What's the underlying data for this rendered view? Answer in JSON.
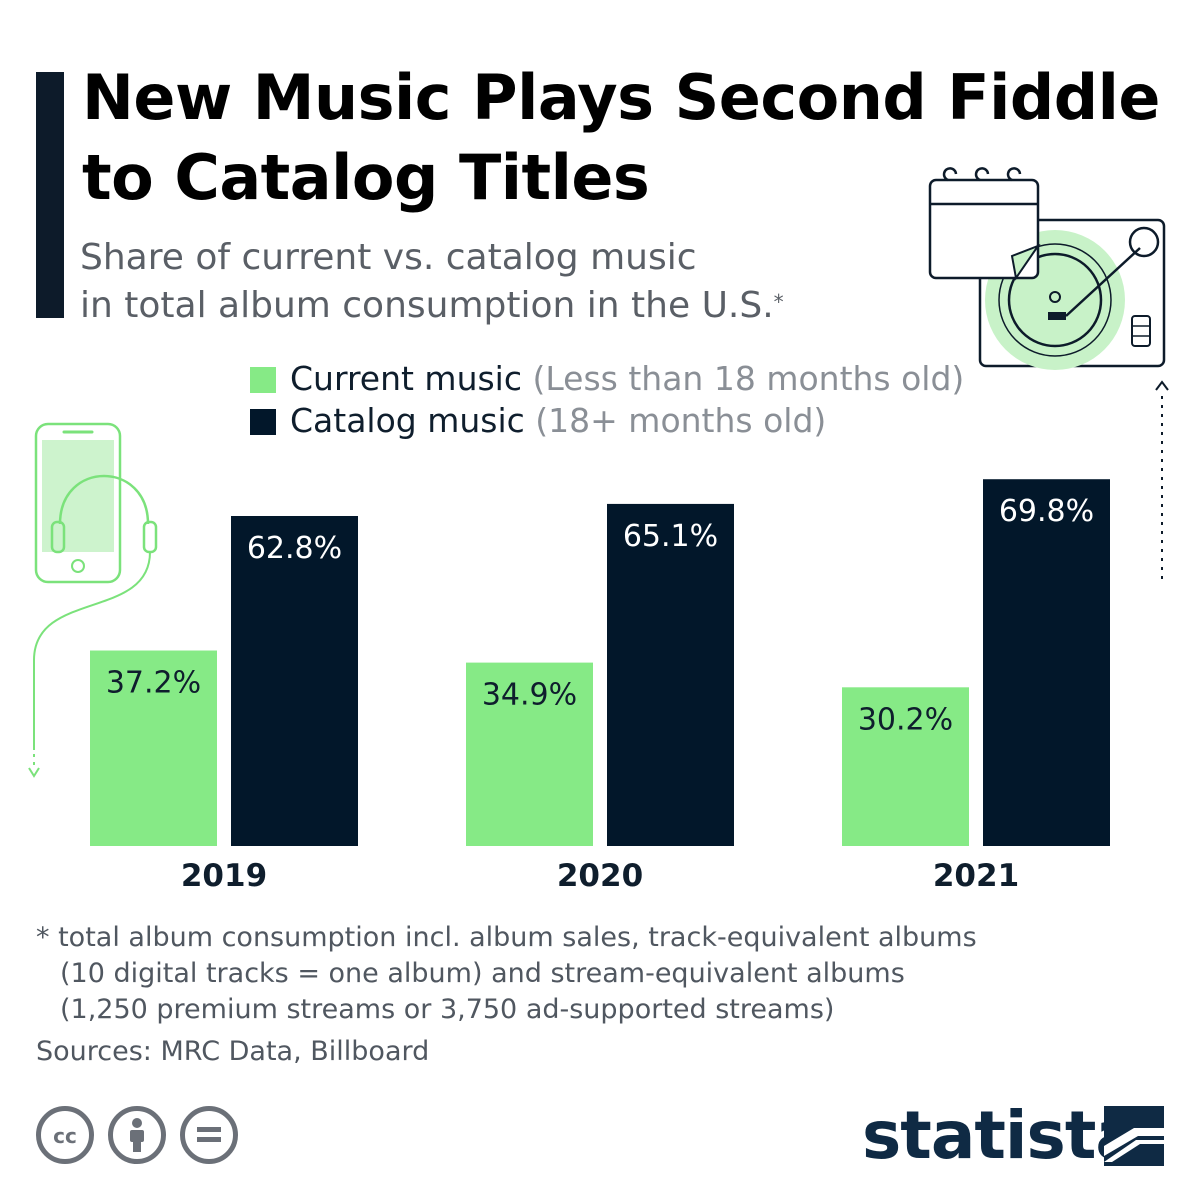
{
  "header": {
    "title_line1": "New Music Plays Second Fiddle",
    "title_line2": "to Catalog Titles",
    "subtitle_line1": "Share of current vs. catalog music",
    "subtitle_line2": "in total album consumption in the U.S.",
    "subtitle_mark": "*"
  },
  "legend": {
    "current_label": "Current music",
    "current_note": "(Less than 18 months old)",
    "catalog_label": "Catalog music",
    "catalog_note": "(18+ months old)"
  },
  "colors": {
    "current": "#86ea86",
    "catalog": "#02172a",
    "accent": "#0d1b2a"
  },
  "chart_data": {
    "type": "bar",
    "categories": [
      "2019",
      "2020",
      "2021"
    ],
    "series": [
      {
        "name": "Current music",
        "values": [
          37.2,
          34.9,
          30.2
        ],
        "labels": [
          "37.2%",
          "34.9%",
          "30.2%"
        ]
      },
      {
        "name": "Catalog music",
        "values": [
          62.8,
          65.1,
          69.8
        ],
        "labels": [
          "62.8%",
          "65.1%",
          "69.8%"
        ]
      }
    ],
    "ylim": [
      0,
      80
    ],
    "grid": false,
    "legend_position": "top"
  },
  "footnote": {
    "line1": "* total album consumption incl. album sales, track-equivalent albums",
    "line2": "(10 digital tracks = one album) and stream-equivalent albums",
    "line3": "(1,250 premium streams or 3,750 ad-supported streams)"
  },
  "sources": "Sources: MRC Data, Billboard",
  "brand": {
    "name": "statista"
  },
  "icons": {
    "cc": "cc-icon",
    "attribution": "attribution-icon",
    "no_derivatives": "no-derivatives-icon",
    "phone": "phone-headphones-icon",
    "turntable": "turntable-calendar-icon"
  }
}
